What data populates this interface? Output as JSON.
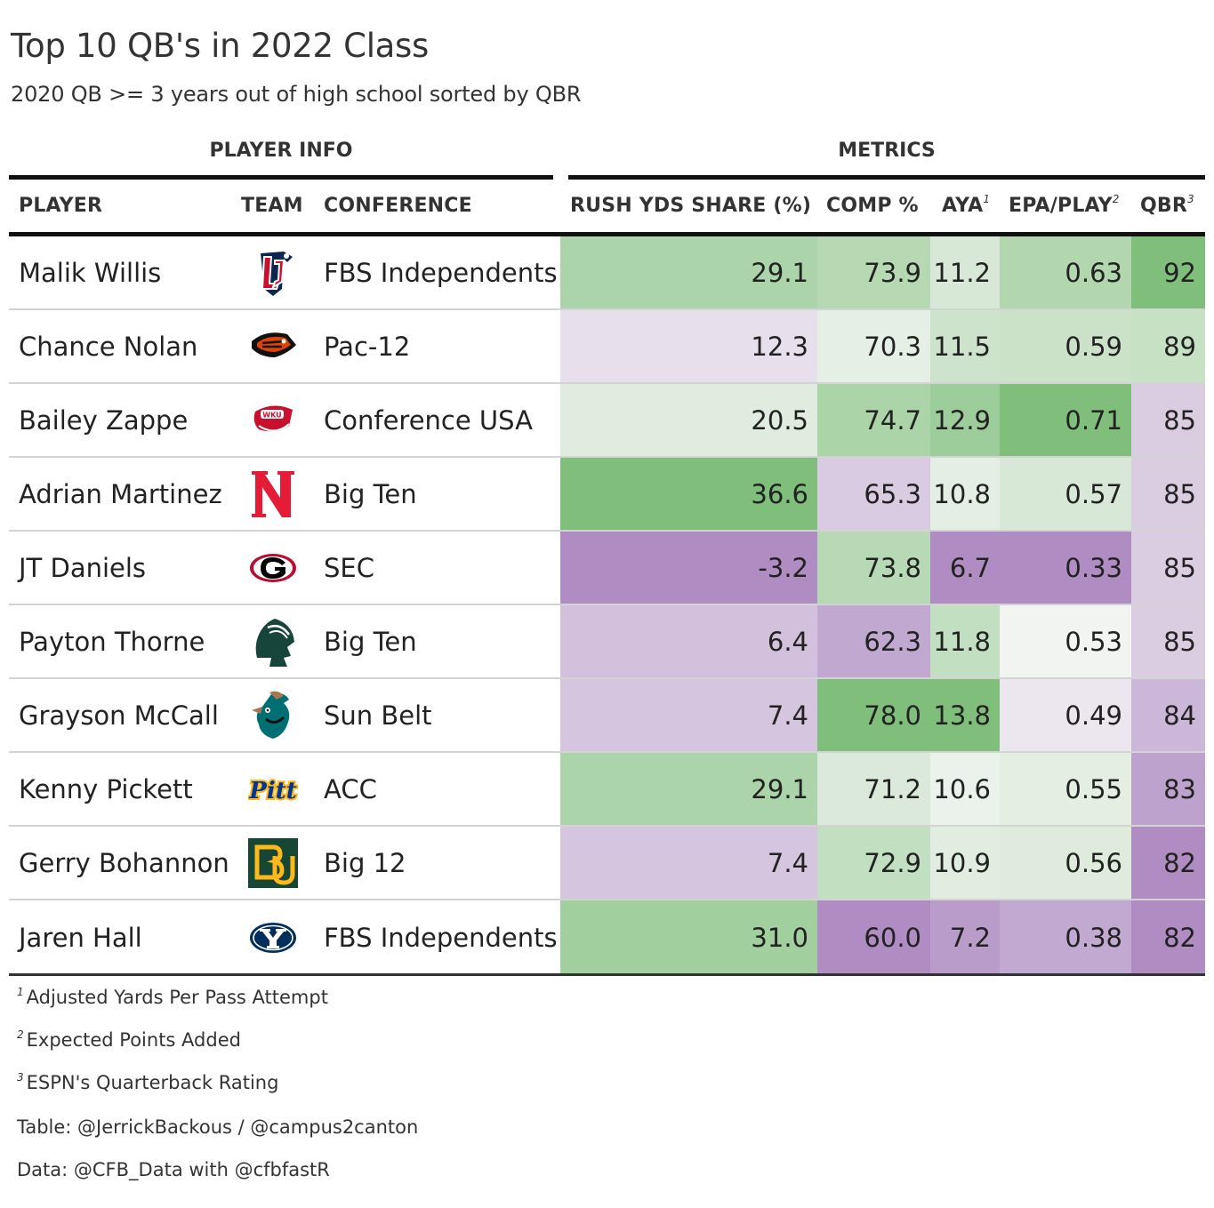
{
  "chart_data": {
    "type": "table",
    "title": "Top 10 QB's in 2022 Class",
    "subtitle": "2020 QB >= 3 years out of high school sorted by QBR",
    "spanners": {
      "player_info": "PLAYER INFO",
      "metrics": "METRICS"
    },
    "columns": {
      "player": "PLAYER",
      "team": "TEAM",
      "conference": "CONFERENCE",
      "rush": "RUSH YDS SHARE (%)",
      "comp": "COMP %",
      "aya": "AYA",
      "aya_mark": "1",
      "epa": "EPA/PLAY",
      "epa_mark": "2",
      "qbr": "QBR",
      "qbr_mark": "3"
    },
    "color_scale": {
      "low": "#af8dc3",
      "mid": "#f7f7f7",
      "high": "#7fbf7b"
    },
    "rows": [
      {
        "player": "Malik Willis",
        "logo": "liberty-logo-icon",
        "conference": "FBS Independents",
        "rush": "29.1",
        "comp": "73.9",
        "aya": "11.2",
        "epa": "0.63",
        "qbr": "92"
      },
      {
        "player": "Chance Nolan",
        "logo": "oregon-state-beaver-logo-icon",
        "conference": "Pac-12",
        "rush": "12.3",
        "comp": "70.3",
        "aya": "11.5",
        "epa": "0.59",
        "qbr": "89"
      },
      {
        "player": "Bailey Zappe",
        "logo": "wku-logo-icon",
        "conference": "Conference USA",
        "rush": "20.5",
        "comp": "74.7",
        "aya": "12.9",
        "epa": "0.71",
        "qbr": "85"
      },
      {
        "player": "Adrian Martinez",
        "logo": "nebraska-n-logo-icon",
        "conference": "Big Ten",
        "rush": "36.6",
        "comp": "65.3",
        "aya": "10.8",
        "epa": "0.57",
        "qbr": "85"
      },
      {
        "player": "JT Daniels",
        "logo": "georgia-g-logo-icon",
        "conference": "SEC",
        "rush": "-3.2",
        "comp": "73.8",
        "aya": "6.7",
        "epa": "0.33",
        "qbr": "85"
      },
      {
        "player": "Payton Thorne",
        "logo": "michigan-state-spartan-logo-icon",
        "conference": "Big Ten",
        "rush": "6.4",
        "comp": "62.3",
        "aya": "11.8",
        "epa": "0.53",
        "qbr": "85"
      },
      {
        "player": "Grayson McCall",
        "logo": "coastal-carolina-chanticleer-logo-icon",
        "conference": "Sun Belt",
        "rush": "7.4",
        "comp": "78.0",
        "aya": "13.8",
        "epa": "0.49",
        "qbr": "84"
      },
      {
        "player": "Kenny Pickett",
        "logo": "pitt-script-logo-icon",
        "conference": "ACC",
        "rush": "29.1",
        "comp": "71.2",
        "aya": "10.6",
        "epa": "0.55",
        "qbr": "83"
      },
      {
        "player": "Gerry Bohannon",
        "logo": "baylor-bu-logo-icon",
        "conference": "Big 12",
        "rush": "7.4",
        "comp": "72.9",
        "aya": "10.9",
        "epa": "0.56",
        "qbr": "82"
      },
      {
        "player": "Jaren Hall",
        "logo": "byu-y-logo-icon",
        "conference": "FBS Independents",
        "rush": "31.0",
        "comp": "60.0",
        "aya": "7.2",
        "epa": "0.38",
        "qbr": "82"
      }
    ],
    "footnotes": [
      {
        "mark": "1",
        "text": "Adjusted Yards Per Pass Attempt"
      },
      {
        "mark": "2",
        "text": "Expected Points Added"
      },
      {
        "mark": "3",
        "text": "ESPN's Quarterback Rating"
      }
    ],
    "source_notes": [
      "Table: @JerrickBackous / @campus2canton",
      "Data: @CFB_Data with @cfbfastR"
    ]
  }
}
